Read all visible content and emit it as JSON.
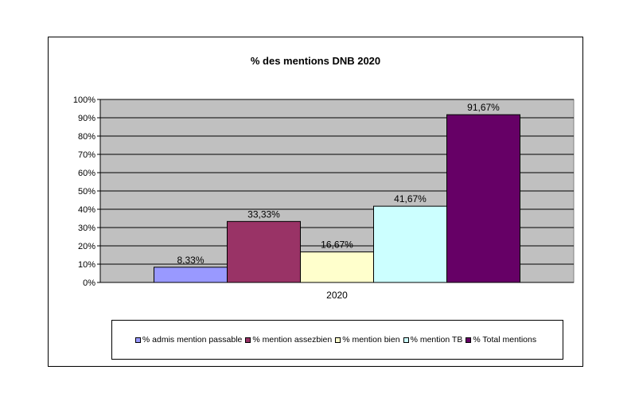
{
  "chart_data": {
    "type": "bar",
    "title": "% des mentions DNB 2020",
    "categories": [
      "2020"
    ],
    "series": [
      {
        "name": "% admis mention passable",
        "values": [
          8.33
        ],
        "label": "8,33%",
        "color": "#9999ff"
      },
      {
        "name": "% mention assezbien",
        "values": [
          33.33
        ],
        "label": "33,33%",
        "color": "#993366"
      },
      {
        "name": "% mention bien",
        "values": [
          16.67
        ],
        "label": "16,67%",
        "color": "#ffffcc"
      },
      {
        "name": "% mention TB",
        "values": [
          41.67
        ],
        "label": "41,67%",
        "color": "#ccffff"
      },
      {
        "name": "% Total mentions",
        "values": [
          91.67
        ],
        "label": "91,67%",
        "color": "#660066"
      }
    ],
    "y_ticks": [
      "0%",
      "10%",
      "20%",
      "30%",
      "40%",
      "50%",
      "60%",
      "70%",
      "80%",
      "90%",
      "100%"
    ],
    "ylim": [
      0,
      100
    ],
    "grid": true,
    "plot_background": "#c0c0c0",
    "legend_position": "bottom"
  }
}
